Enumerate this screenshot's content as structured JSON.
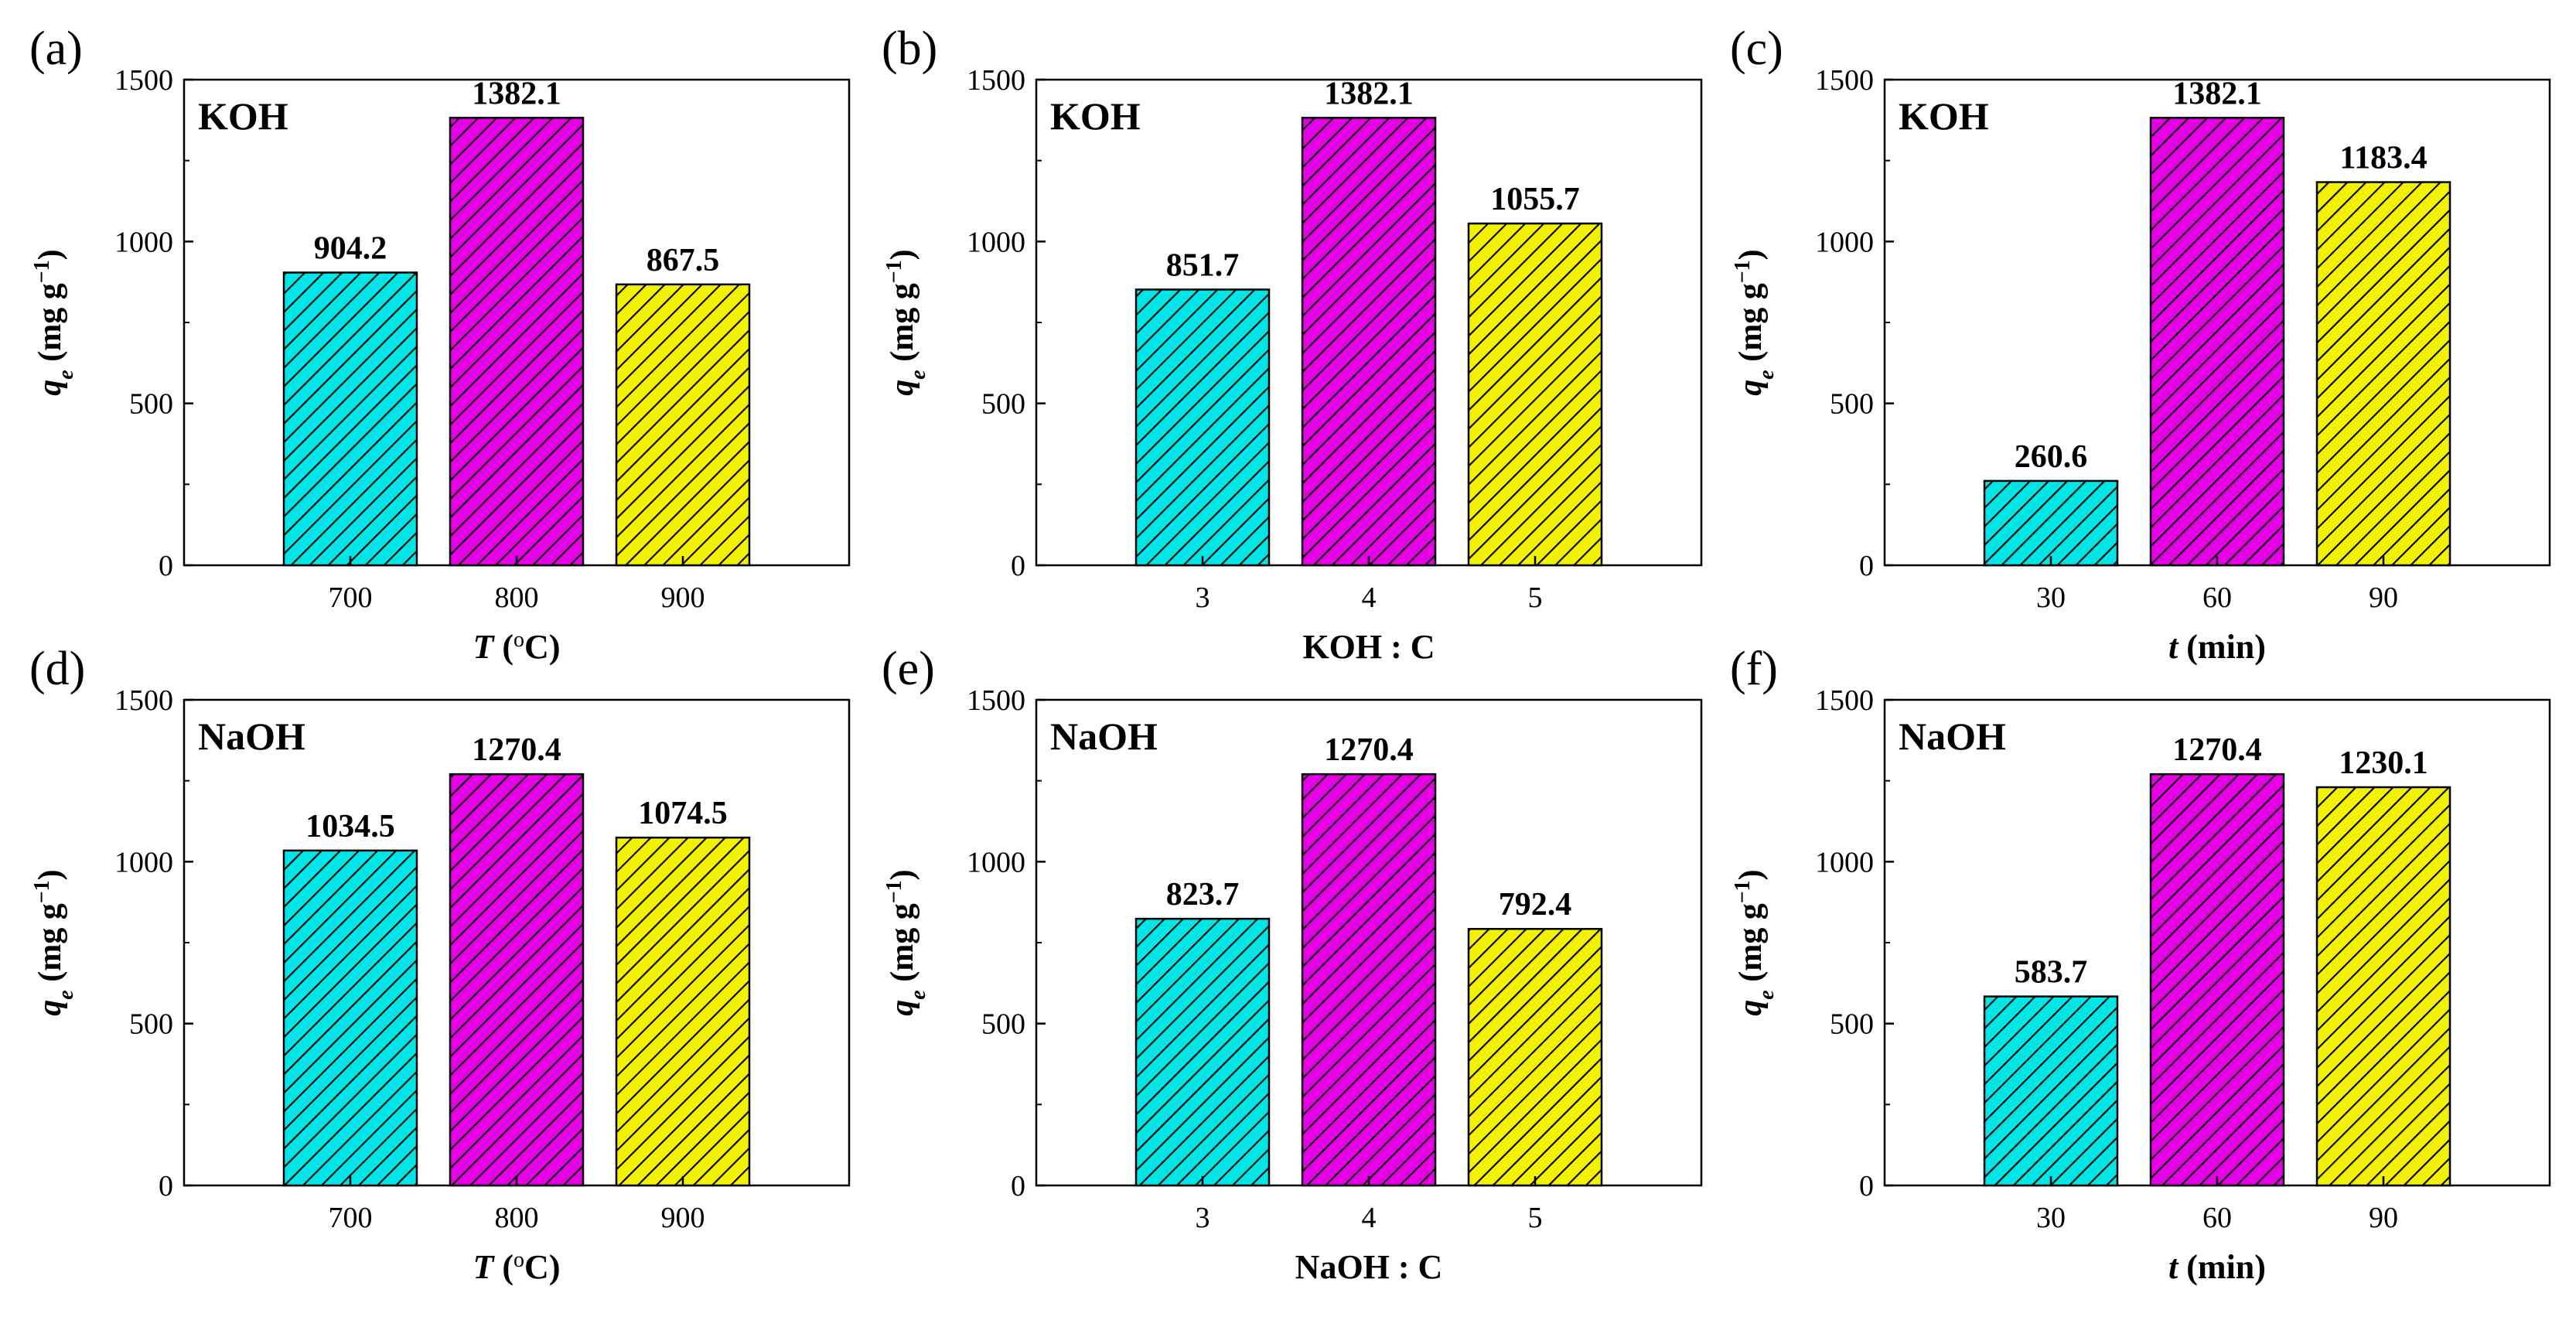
{
  "figure": {
    "panels": [
      {
        "letter": "(a)",
        "inset": "KOH",
        "xtitle": {
          "var": "T",
          "rest": " (",
          "sup": "o",
          "unit": "C)"
        }
      },
      {
        "letter": "(b)",
        "inset": "KOH",
        "xtitle": {
          "var": "",
          "rest": "KOH : C",
          "sup": "",
          "unit": ""
        }
      },
      {
        "letter": "(c)",
        "inset": "KOH",
        "xtitle": {
          "var": "t",
          "rest": " (min)",
          "sup": "",
          "unit": ""
        }
      },
      {
        "letter": "(d)",
        "inset": "NaOH",
        "xtitle": {
          "var": "T",
          "rest": " (",
          "sup": "o",
          "unit": "C)"
        }
      },
      {
        "letter": "(e)",
        "inset": "NaOH",
        "xtitle": {
          "var": "",
          "rest": "NaOH : C",
          "sup": "",
          "unit": ""
        }
      },
      {
        "letter": "(f)",
        "inset": "NaOH",
        "xtitle": {
          "var": "t",
          "rest": " (min)",
          "sup": "",
          "unit": ""
        }
      }
    ],
    "ylabel": {
      "symbol": "q",
      "sub": "e",
      "unit": " (mg g",
      "sup": "−1",
      "close": ")"
    }
  },
  "colors": {
    "cyan": "#00e5e5",
    "magenta": "#e600e6",
    "yellow": "#f2f200",
    "stroke": "#000000"
  },
  "chart_data": [
    {
      "type": "bar",
      "title": "",
      "xlabel": "T (oC)",
      "ylabel": "qe (mg g−1)",
      "ylim": [
        0,
        1500
      ],
      "yticks": [
        0,
        500,
        1000,
        1500
      ],
      "grid": false,
      "categories": [
        "700",
        "800",
        "900"
      ],
      "values": [
        904.2,
        1382.1,
        867.5
      ],
      "value_labels": [
        "904.2",
        "1382.1",
        "867.5"
      ],
      "bar_colors": [
        "#00e5e5",
        "#e600e6",
        "#f2f200"
      ],
      "pattern": "diagonal-hatch"
    },
    {
      "type": "bar",
      "title": "",
      "xlabel": "KOH : C",
      "ylabel": "qe (mg g−1)",
      "ylim": [
        0,
        1500
      ],
      "yticks": [
        0,
        500,
        1000,
        1500
      ],
      "grid": false,
      "categories": [
        "3",
        "4",
        "5"
      ],
      "values": [
        851.7,
        1382.1,
        1055.7
      ],
      "value_labels": [
        "851.7",
        "1382.1",
        "1055.7"
      ],
      "bar_colors": [
        "#00e5e5",
        "#e600e6",
        "#f2f200"
      ],
      "pattern": "diagonal-hatch"
    },
    {
      "type": "bar",
      "title": "",
      "xlabel": "t (min)",
      "ylabel": "qe (mg g−1)",
      "ylim": [
        0,
        1500
      ],
      "yticks": [
        0,
        500,
        1000,
        1500
      ],
      "grid": false,
      "categories": [
        "30",
        "60",
        "90"
      ],
      "values": [
        260.6,
        1382.1,
        1183.4
      ],
      "value_labels": [
        "260.6",
        "1382.1",
        "1183.4"
      ],
      "bar_colors": [
        "#00e5e5",
        "#e600e6",
        "#f2f200"
      ],
      "pattern": "diagonal-hatch"
    },
    {
      "type": "bar",
      "title": "",
      "xlabel": "T (oC)",
      "ylabel": "qe (mg g−1)",
      "ylim": [
        0,
        1500
      ],
      "yticks": [
        0,
        500,
        1000,
        1500
      ],
      "grid": false,
      "categories": [
        "700",
        "800",
        "900"
      ],
      "values": [
        1034.5,
        1270.4,
        1074.5
      ],
      "value_labels": [
        "1034.5",
        "1270.4",
        "1074.5"
      ],
      "bar_colors": [
        "#00e5e5",
        "#e600e6",
        "#f2f200"
      ],
      "pattern": "diagonal-hatch"
    },
    {
      "type": "bar",
      "title": "",
      "xlabel": "NaOH : C",
      "ylabel": "qe (mg g−1)",
      "ylim": [
        0,
        1500
      ],
      "yticks": [
        0,
        500,
        1000,
        1500
      ],
      "grid": false,
      "categories": [
        "3",
        "4",
        "5"
      ],
      "values": [
        823.7,
        1270.4,
        792.4
      ],
      "value_labels": [
        "823.7",
        "1270.4",
        "792.4"
      ],
      "bar_colors": [
        "#00e5e5",
        "#e600e6",
        "#f2f200"
      ],
      "pattern": "diagonal-hatch"
    },
    {
      "type": "bar",
      "title": "",
      "xlabel": "t (min)",
      "ylabel": "qe (mg g−1)",
      "ylim": [
        0,
        1500
      ],
      "yticks": [
        0,
        500,
        1000,
        1500
      ],
      "grid": false,
      "categories": [
        "30",
        "60",
        "90"
      ],
      "values": [
        583.7,
        1270.4,
        1230.1
      ],
      "value_labels": [
        "583.7",
        "1270.4",
        "1230.1"
      ],
      "bar_colors": [
        "#00e5e5",
        "#e600e6",
        "#f2f200"
      ],
      "pattern": "diagonal-hatch"
    }
  ]
}
